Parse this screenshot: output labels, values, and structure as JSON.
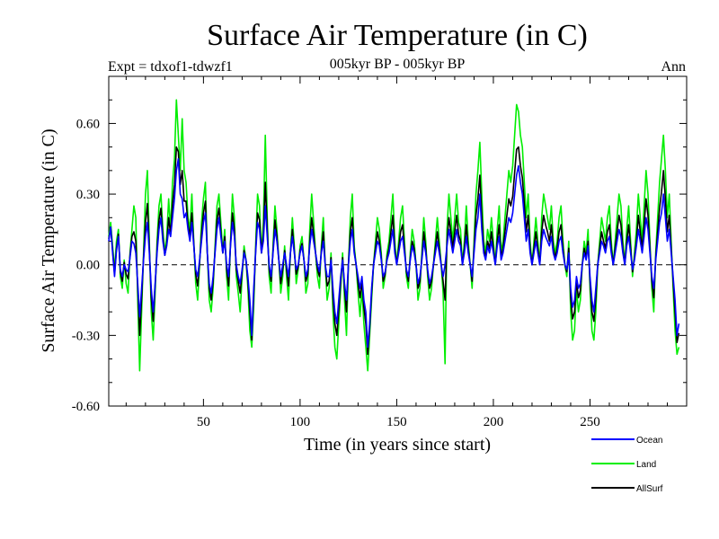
{
  "chart_data": {
    "type": "line",
    "title": "Surface Air Temperature (in C)",
    "subtitle": "005kyr BP - 005kyr BP",
    "expt_label": "Expt = tdxof1-tdwzf1",
    "period_label": "Ann",
    "xlabel": "Time (in years since start)",
    "ylabel": "Surface Air Temperature (in C)",
    "xlim": [
      1,
      300
    ],
    "ylim": [
      -0.6,
      0.8
    ],
    "x_ticks": [
      50,
      100,
      150,
      200,
      250
    ],
    "x_tick_labels": [
      "50",
      "100",
      "150",
      "200",
      "250"
    ],
    "y_ticks": [
      -0.6,
      -0.3,
      0.0,
      0.3,
      0.6
    ],
    "y_tick_labels": [
      "-0.60",
      "-0.30",
      "0.00",
      "0.30",
      "0.60"
    ],
    "zero_line": "dashed",
    "legend_position": "bottom-right",
    "x_step": 1,
    "series": [
      {
        "name": "Ocean",
        "color": "#0000ff",
        "values": [
          0.1,
          0.16,
          0.05,
          -0.05,
          0.06,
          0.12,
          -0.02,
          -0.05,
          0.0,
          -0.02,
          -0.03,
          0.03,
          0.1,
          0.09,
          0.05,
          -0.08,
          -0.22,
          -0.1,
          0.02,
          0.12,
          0.18,
          0.05,
          -0.1,
          -0.2,
          -0.08,
          0.05,
          0.15,
          0.2,
          0.1,
          0.04,
          0.08,
          0.15,
          0.12,
          0.2,
          0.28,
          0.4,
          0.45,
          0.3,
          0.28,
          0.2,
          0.22,
          0.15,
          0.1,
          0.18,
          0.08,
          -0.02,
          -0.05,
          0.02,
          0.1,
          0.18,
          0.22,
          0.05,
          -0.08,
          -0.12,
          -0.05,
          0.05,
          0.15,
          0.2,
          0.12,
          0.05,
          0.1,
          0.0,
          -0.05,
          0.08,
          0.18,
          0.12,
          0.0,
          -0.05,
          -0.08,
          -0.02,
          0.05,
          0.02,
          -0.05,
          -0.15,
          -0.3,
          -0.1,
          0.05,
          0.18,
          0.15,
          0.05,
          0.1,
          0.25,
          0.12,
          0.0,
          -0.05,
          0.05,
          0.15,
          0.1,
          0.02,
          -0.05,
          0.0,
          0.05,
          0.0,
          -0.05,
          0.05,
          0.12,
          0.05,
          -0.02,
          0.0,
          0.05,
          0.08,
          0.02,
          -0.05,
          -0.02,
          0.08,
          0.15,
          0.1,
          0.05,
          0.0,
          -0.03,
          0.05,
          0.1,
          0.0,
          -0.05,
          -0.05,
          0.02,
          -0.1,
          -0.2,
          -0.25,
          -0.15,
          -0.05,
          0.02,
          -0.08,
          -0.15,
          0.0,
          0.1,
          0.15,
          0.05,
          0.0,
          -0.05,
          -0.1,
          -0.05,
          -0.15,
          -0.2,
          -0.35,
          -0.25,
          -0.1,
          0.0,
          0.05,
          0.1,
          0.08,
          0.02,
          -0.05,
          -0.03,
          0.02,
          0.05,
          0.1,
          0.15,
          0.05,
          0.0,
          0.05,
          0.1,
          0.12,
          0.05,
          -0.02,
          -0.05,
          0.02,
          0.08,
          0.05,
          0.0,
          -0.08,
          -0.05,
          0.02,
          0.1,
          0.05,
          -0.02,
          -0.08,
          -0.05,
          0.0,
          0.05,
          0.1,
          0.05,
          0.0,
          -0.05,
          0.0,
          0.08,
          0.15,
          0.1,
          0.05,
          0.1,
          0.15,
          0.1,
          0.08,
          0.0,
          0.05,
          0.12,
          0.05,
          0.0,
          -0.05,
          0.05,
          0.15,
          0.2,
          0.3,
          0.15,
          0.05,
          0.02,
          0.08,
          0.05,
          0.1,
          0.05,
          0.0,
          0.08,
          0.12,
          0.02,
          0.05,
          0.1,
          0.15,
          0.2,
          0.18,
          0.22,
          0.3,
          0.38,
          0.42,
          0.35,
          0.3,
          0.2,
          0.1,
          0.15,
          0.05,
          0.0,
          0.05,
          0.1,
          0.05,
          0.0,
          0.1,
          0.15,
          0.12,
          0.1,
          0.08,
          0.12,
          0.05,
          0.02,
          0.05,
          0.1,
          0.12,
          0.05,
          0.0,
          -0.02,
          0.05,
          -0.1,
          -0.18,
          -0.15,
          -0.05,
          -0.1,
          -0.08,
          0.0,
          0.05,
          0.02,
          0.08,
          -0.05,
          -0.15,
          -0.2,
          -0.1,
          0.0,
          0.05,
          0.1,
          0.08,
          0.05,
          0.1,
          0.12,
          0.05,
          0.0,
          0.05,
          0.1,
          0.15,
          0.12,
          0.05,
          0.0,
          0.08,
          0.12,
          0.05,
          -0.02,
          0.02,
          0.08,
          0.15,
          0.1,
          0.05,
          0.12,
          0.2,
          0.15,
          0.05,
          -0.05,
          -0.1,
          0.02,
          0.1,
          0.18,
          0.22,
          0.3,
          0.2,
          0.1,
          0.15,
          0.05,
          -0.05,
          -0.15,
          -0.3,
          -0.25
        ]
      },
      {
        "name": "Land",
        "color": "#00ee00",
        "values": [
          0.12,
          0.18,
          0.08,
          -0.02,
          0.1,
          0.15,
          -0.05,
          -0.1,
          0.02,
          -0.08,
          -0.12,
          0.05,
          0.15,
          0.25,
          0.2,
          -0.15,
          -0.45,
          -0.2,
          0.05,
          0.3,
          0.4,
          0.1,
          -0.2,
          -0.32,
          -0.12,
          0.1,
          0.25,
          0.3,
          0.15,
          0.05,
          0.12,
          0.28,
          0.15,
          0.35,
          0.45,
          0.7,
          0.55,
          0.4,
          0.62,
          0.4,
          0.35,
          0.2,
          0.15,
          0.3,
          0.1,
          -0.08,
          -0.15,
          0.0,
          0.18,
          0.28,
          0.35,
          0.05,
          -0.15,
          -0.2,
          -0.1,
          0.08,
          0.25,
          0.3,
          0.18,
          0.05,
          0.15,
          -0.05,
          -0.15,
          0.1,
          0.3,
          0.2,
          -0.05,
          -0.12,
          -0.2,
          -0.05,
          0.08,
          0.02,
          -0.1,
          -0.28,
          -0.35,
          -0.18,
          0.08,
          0.3,
          0.25,
          0.05,
          0.18,
          0.55,
          0.2,
          -0.05,
          -0.12,
          0.08,
          0.25,
          0.15,
          0.02,
          -0.12,
          -0.05,
          0.08,
          -0.05,
          -0.15,
          0.05,
          0.2,
          0.08,
          -0.08,
          -0.02,
          0.08,
          0.12,
          0.02,
          -0.12,
          -0.08,
          0.15,
          0.3,
          0.18,
          0.05,
          -0.05,
          -0.1,
          0.08,
          0.2,
          0.0,
          -0.15,
          -0.1,
          0.05,
          -0.2,
          -0.35,
          -0.4,
          -0.25,
          -0.1,
          0.05,
          -0.15,
          -0.3,
          0.0,
          0.2,
          0.3,
          0.08,
          0.0,
          -0.12,
          -0.22,
          -0.1,
          -0.25,
          -0.35,
          -0.45,
          -0.3,
          -0.15,
          0.0,
          0.1,
          0.2,
          0.15,
          0.05,
          -0.1,
          -0.05,
          0.05,
          0.1,
          0.2,
          0.3,
          0.1,
          0.0,
          0.1,
          0.2,
          0.25,
          0.1,
          -0.05,
          -0.1,
          0.05,
          0.15,
          0.1,
          0.0,
          -0.15,
          -0.1,
          0.05,
          0.2,
          0.1,
          -0.05,
          -0.15,
          -0.1,
          0.0,
          0.1,
          0.2,
          0.1,
          0.0,
          -0.12,
          -0.42,
          0.15,
          0.3,
          0.2,
          0.1,
          0.2,
          0.3,
          0.18,
          0.15,
          0.0,
          0.1,
          0.25,
          0.1,
          0.0,
          -0.1,
          0.1,
          0.3,
          0.4,
          0.52,
          0.3,
          0.1,
          0.05,
          0.15,
          0.1,
          0.2,
          0.1,
          0.0,
          0.15,
          0.25,
          0.05,
          0.1,
          0.2,
          0.3,
          0.4,
          0.35,
          0.42,
          0.55,
          0.68,
          0.65,
          0.55,
          0.5,
          0.35,
          0.2,
          0.3,
          0.1,
          0.0,
          0.1,
          0.2,
          0.1,
          0.0,
          0.2,
          0.3,
          0.25,
          0.2,
          0.15,
          0.25,
          0.1,
          0.05,
          0.1,
          0.2,
          0.25,
          0.1,
          0.0,
          -0.05,
          0.1,
          -0.2,
          -0.32,
          -0.28,
          -0.1,
          -0.2,
          -0.15,
          0.0,
          0.1,
          0.05,
          0.15,
          -0.1,
          -0.28,
          -0.32,
          -0.2,
          0.0,
          0.1,
          0.2,
          0.15,
          0.1,
          0.2,
          0.25,
          0.1,
          0.0,
          0.1,
          0.2,
          0.3,
          0.25,
          0.1,
          0.0,
          0.15,
          0.25,
          0.1,
          -0.05,
          0.05,
          0.15,
          0.3,
          0.2,
          0.1,
          0.25,
          0.4,
          0.3,
          0.1,
          -0.1,
          -0.2,
          0.05,
          0.2,
          0.35,
          0.45,
          0.55,
          0.4,
          0.2,
          0.3,
          0.1,
          -0.1,
          -0.28,
          -0.38,
          -0.35
        ]
      },
      {
        "name": "AllSurf",
        "color": "#000000",
        "values": [
          0.11,
          0.16,
          0.06,
          -0.04,
          0.07,
          0.13,
          -0.03,
          -0.07,
          0.01,
          -0.04,
          -0.06,
          0.04,
          0.12,
          0.14,
          0.1,
          -0.1,
          -0.3,
          -0.14,
          0.03,
          0.18,
          0.26,
          0.07,
          -0.14,
          -0.24,
          -0.09,
          0.07,
          0.19,
          0.24,
          0.12,
          0.04,
          0.09,
          0.2,
          0.13,
          0.26,
          0.34,
          0.5,
          0.48,
          0.34,
          0.4,
          0.27,
          0.27,
          0.17,
          0.12,
          0.22,
          0.09,
          -0.04,
          -0.09,
          0.01,
          0.13,
          0.22,
          0.27,
          0.05,
          -0.1,
          -0.15,
          -0.07,
          0.06,
          0.19,
          0.24,
          0.14,
          0.05,
          0.12,
          -0.02,
          -0.09,
          0.09,
          0.22,
          0.15,
          -0.02,
          -0.07,
          -0.12,
          -0.03,
          0.06,
          0.02,
          -0.07,
          -0.2,
          -0.32,
          -0.13,
          0.06,
          0.22,
          0.19,
          0.05,
          0.13,
          0.35,
          0.15,
          -0.02,
          -0.07,
          0.06,
          0.19,
          0.12,
          0.02,
          -0.08,
          -0.02,
          0.06,
          -0.02,
          -0.09,
          0.05,
          0.15,
          0.06,
          -0.04,
          -0.01,
          0.06,
          0.09,
          0.02,
          -0.07,
          -0.04,
          0.1,
          0.2,
          0.13,
          0.05,
          -0.02,
          -0.05,
          0.06,
          0.14,
          0.0,
          -0.09,
          -0.07,
          0.03,
          -0.14,
          -0.25,
          -0.3,
          -0.19,
          -0.07,
          0.03,
          -0.1,
          -0.2,
          0.0,
          0.14,
          0.2,
          0.06,
          0.0,
          -0.08,
          -0.14,
          -0.07,
          -0.18,
          -0.25,
          -0.38,
          -0.27,
          -0.12,
          0.0,
          0.07,
          0.14,
          0.1,
          0.03,
          -0.07,
          -0.04,
          0.03,
          0.07,
          0.14,
          0.21,
          0.07,
          0.0,
          0.07,
          0.14,
          0.17,
          0.07,
          -0.03,
          -0.07,
          0.03,
          0.1,
          0.07,
          0.0,
          -0.1,
          -0.07,
          0.03,
          0.14,
          0.07,
          -0.03,
          -0.1,
          -0.07,
          0.0,
          0.07,
          0.14,
          0.07,
          0.0,
          -0.07,
          -0.15,
          0.1,
          0.2,
          0.14,
          0.07,
          0.14,
          0.21,
          0.13,
          0.1,
          0.0,
          0.07,
          0.17,
          0.07,
          0.0,
          -0.07,
          0.07,
          0.21,
          0.28,
          0.38,
          0.21,
          0.07,
          0.03,
          0.1,
          0.07,
          0.14,
          0.07,
          0.0,
          0.1,
          0.17,
          0.03,
          0.07,
          0.14,
          0.21,
          0.28,
          0.25,
          0.29,
          0.39,
          0.49,
          0.5,
          0.42,
          0.37,
          0.26,
          0.14,
          0.21,
          0.07,
          0.0,
          0.07,
          0.14,
          0.07,
          0.0,
          0.14,
          0.21,
          0.17,
          0.14,
          0.1,
          0.17,
          0.07,
          0.03,
          0.07,
          0.14,
          0.17,
          0.07,
          0.0,
          -0.03,
          0.07,
          -0.14,
          -0.23,
          -0.2,
          -0.07,
          -0.14,
          -0.11,
          0.0,
          0.07,
          0.03,
          0.1,
          -0.07,
          -0.2,
          -0.24,
          -0.14,
          0.0,
          0.07,
          0.14,
          0.1,
          0.07,
          0.14,
          0.17,
          0.07,
          0.0,
          0.07,
          0.14,
          0.21,
          0.17,
          0.07,
          0.0,
          0.1,
          0.17,
          0.07,
          -0.03,
          0.03,
          0.1,
          0.21,
          0.14,
          0.07,
          0.17,
          0.28,
          0.21,
          0.07,
          -0.07,
          -0.14,
          0.03,
          0.14,
          0.24,
          0.31,
          0.4,
          0.28,
          0.14,
          0.21,
          0.07,
          -0.07,
          -0.2,
          -0.33,
          -0.29
        ]
      }
    ]
  }
}
